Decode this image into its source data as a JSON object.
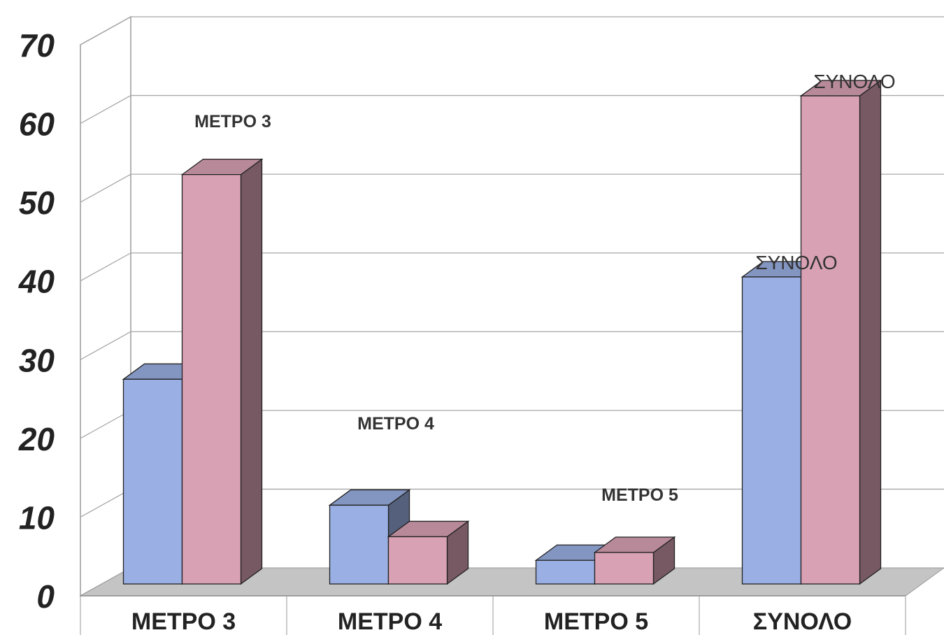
{
  "chart_data": {
    "type": "bar",
    "categories": [
      "ΜΕΤΡΟ 3",
      "ΜΕΤΡΟ 4",
      "ΜΕΤΡΟ 5",
      "ΣΥΝΟΛΟ"
    ],
    "series": [
      {
        "values": [
          26,
          10,
          3,
          39
        ],
        "color": "#9aafe3"
      },
      {
        "values": [
          52,
          6,
          4,
          62
        ],
        "color": "#d9a2b4"
      }
    ],
    "ylim": [
      0,
      70
    ],
    "yticks": [
      0,
      10,
      20,
      30,
      40,
      50,
      60,
      70
    ],
    "grid": true,
    "three_d": true,
    "annotations": [
      "ΜΕΤΡΟ 3",
      "ΜΕΤΡΟ 4",
      "ΜΕΤΡΟ 5",
      "ΣΥΝΟΛΟ",
      "ΣΥΝΟΛΟ"
    ],
    "title": "",
    "xlabel": "",
    "ylabel": ""
  }
}
